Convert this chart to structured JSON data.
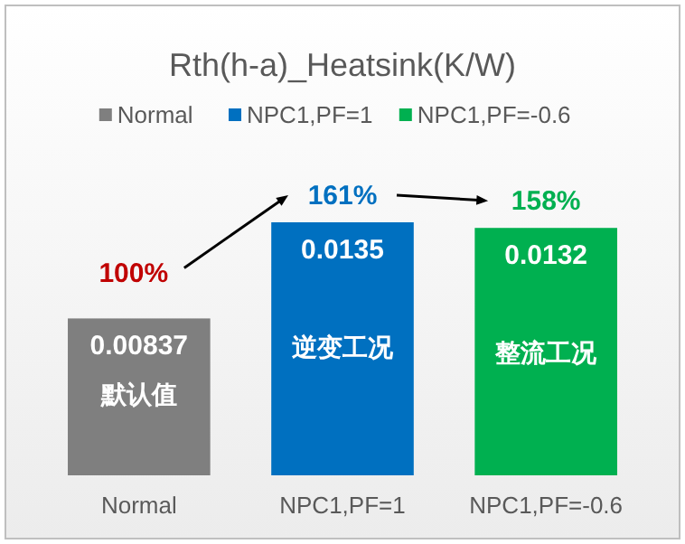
{
  "chart_data": {
    "type": "bar",
    "title": "Rth(h-a)_Heatsink(K/W)",
    "categories": [
      "Normal",
      "NPC1,PF=1",
      "NPC1,PF=-0.6"
    ],
    "series": [
      {
        "name": "Normal",
        "color": "#7f7f7f",
        "values": [
          0.00837,
          null,
          null
        ]
      },
      {
        "name": "NPC1,PF=1",
        "color": "#0070c0",
        "values": [
          null,
          0.0135,
          null
        ]
      },
      {
        "name": "NPC1,PF=-0.6",
        "color": "#00b050",
        "values": [
          null,
          null,
          0.0132
        ]
      }
    ],
    "data_labels": true,
    "legend": "top",
    "annotations": [
      {
        "text": "100%",
        "x": "Normal",
        "y": 0.00837
      },
      {
        "text": "161%",
        "x": "NPC1,PF=1",
        "y": 0.0135
      },
      {
        "text": "158%",
        "x": "NPC1,PF=-0.6",
        "y": 0.0132
      },
      "默认值",
      "逆变工况",
      "整流工况"
    ]
  }
}
